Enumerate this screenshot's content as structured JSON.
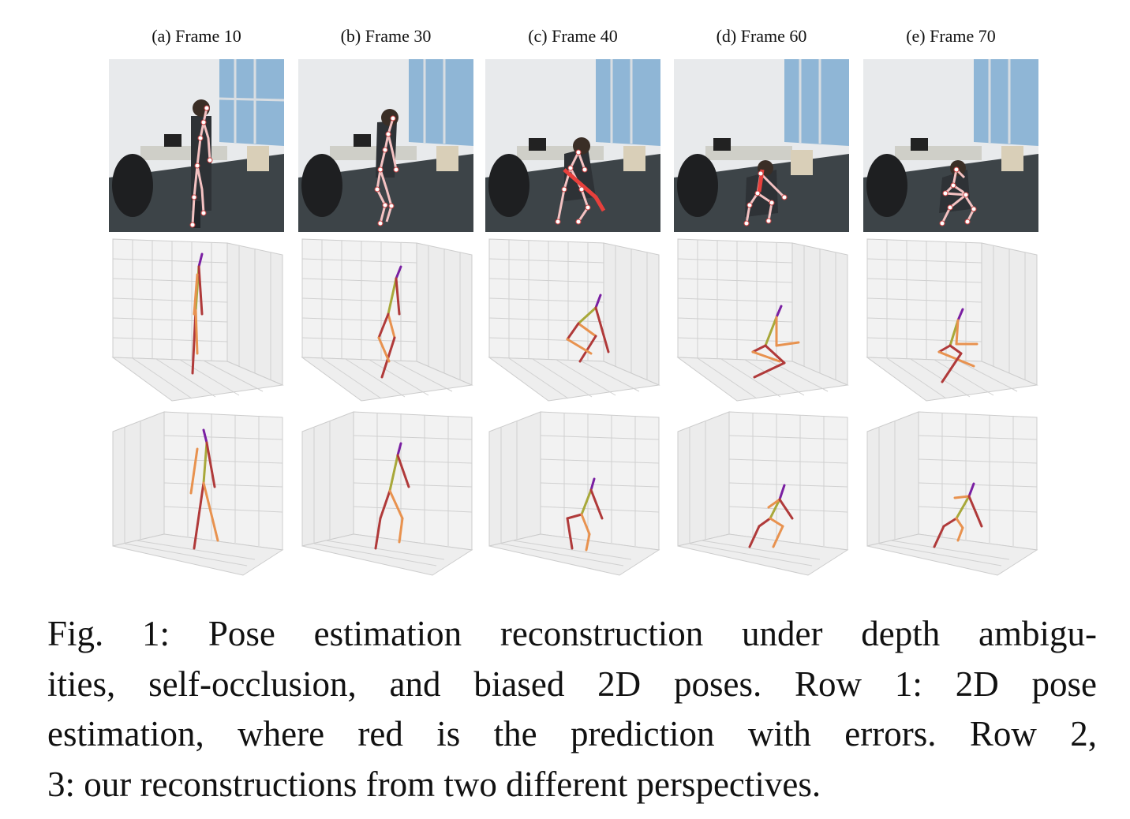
{
  "figure": {
    "columns": [
      {
        "label": "(a) Frame 10"
      },
      {
        "label": "(b) Frame 30"
      },
      {
        "label": "(c) Frame 40"
      },
      {
        "label": "(d) Frame 60"
      },
      {
        "label": "(e) Frame 70"
      }
    ],
    "colors": {
      "wall": "#e8eaec",
      "window": "#8fb6d6",
      "floor": "#3d4448",
      "desk": "#cfcfc8",
      "skeleton_2d": "#f4c2c2",
      "skeleton_2d_error": "#e8403c",
      "pose_head": "#7a1fa2",
      "pose_spine": "#a8a83a",
      "pose_limb_a": "#e8924f",
      "pose_limb_b": "#b03a3a",
      "grid": "#d0d0d0",
      "pane": "#f2f2f2"
    }
  },
  "caption": {
    "line1": "Fig. 1: Pose estimation reconstruction under depth ambigu-",
    "line2": "ities, self-occlusion, and biased 2D poses. Row 1: 2D pose",
    "line3": "estimation, where red is the prediction with errors. Row 2,",
    "line4": "3: our reconstructions from two different perspectives."
  }
}
